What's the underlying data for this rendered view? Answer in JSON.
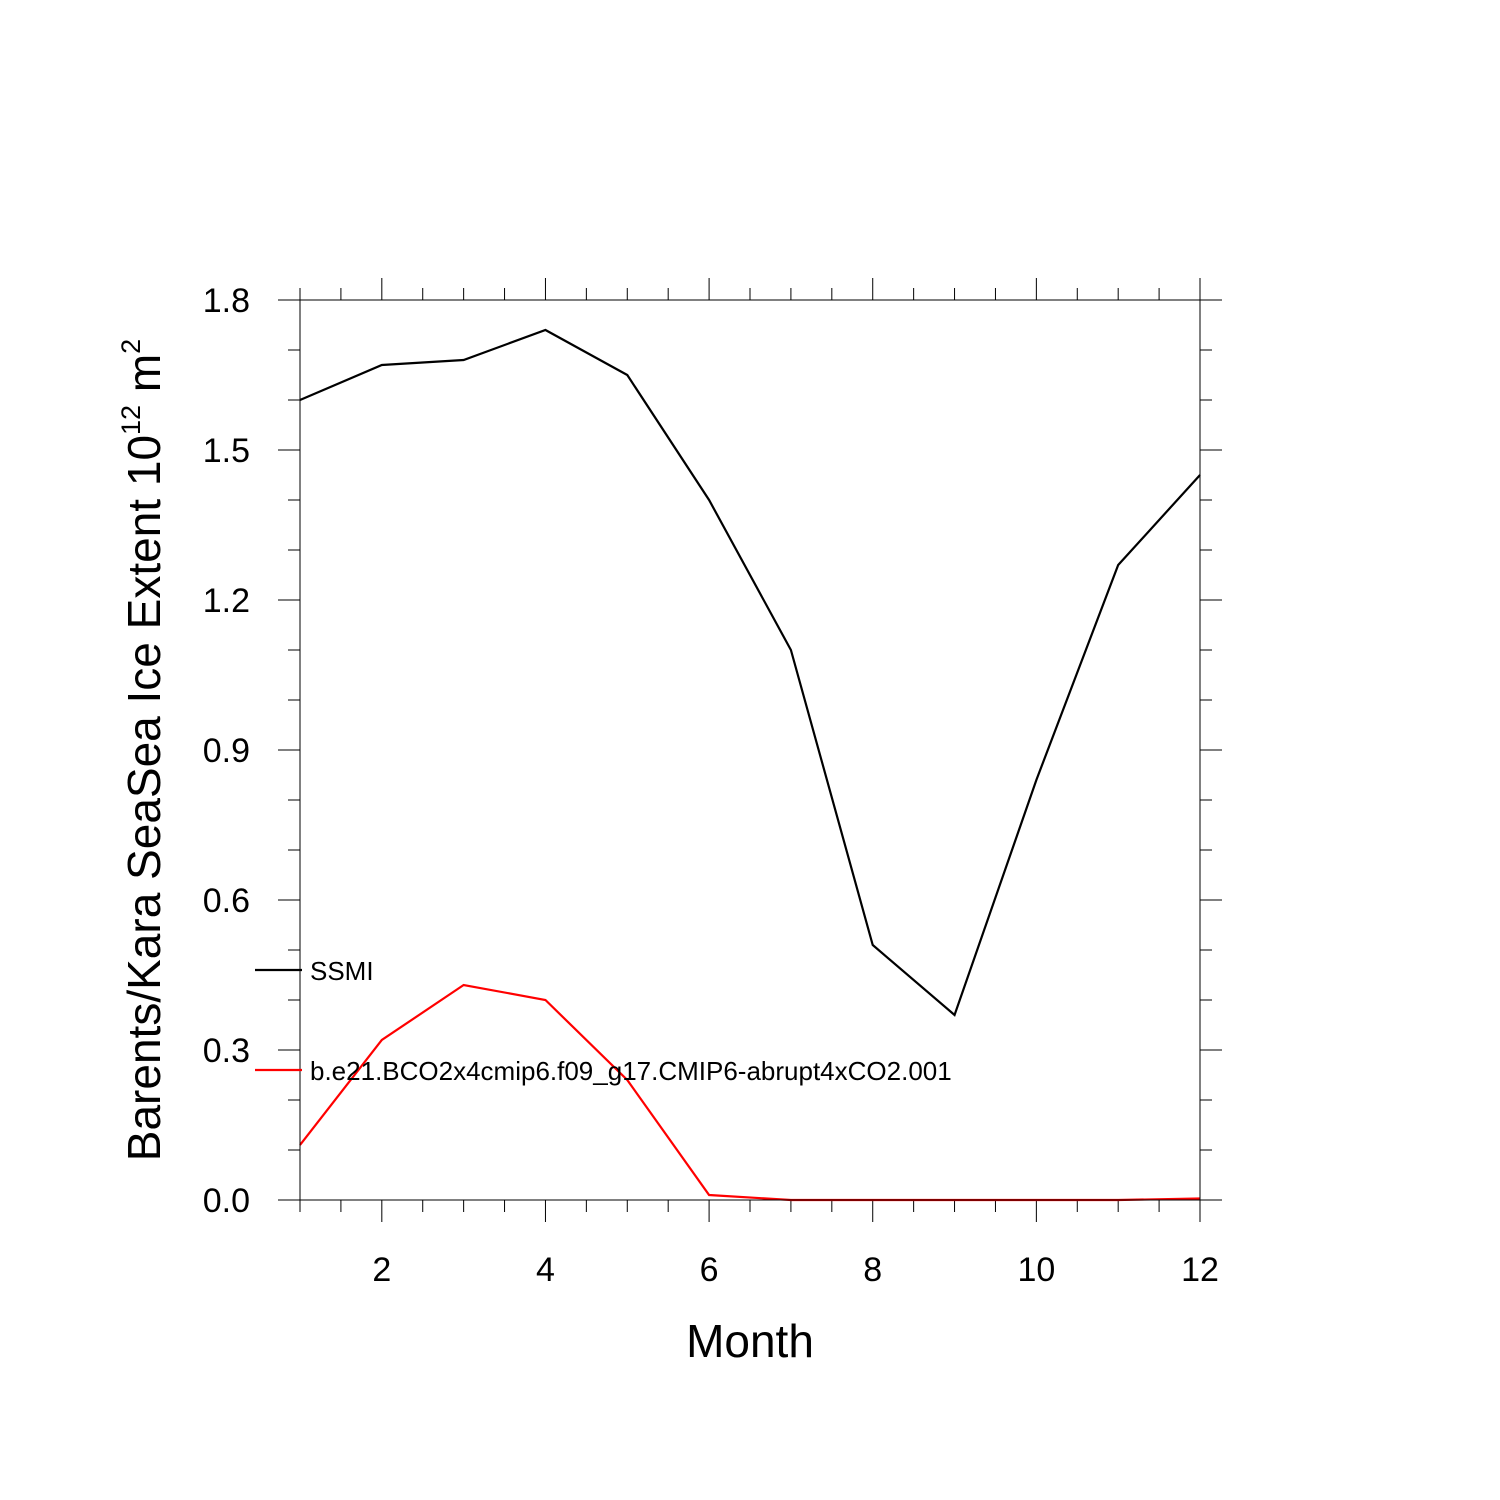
{
  "chart_data": {
    "type": "line",
    "x": [
      1,
      2,
      3,
      4,
      5,
      6,
      7,
      8,
      9,
      10,
      11,
      12
    ],
    "series": [
      {
        "name": "SSMI",
        "color": "#000000",
        "values": [
          1.6,
          1.67,
          1.68,
          1.74,
          1.65,
          1.4,
          1.1,
          0.51,
          0.37,
          0.84,
          1.27,
          1.45
        ]
      },
      {
        "name": "b.e21.BCO2x4cmip6.f09_g17.CMIP6-abrupt4xCO2.001",
        "color": "#ff0000",
        "values": [
          0.11,
          0.32,
          0.43,
          0.4,
          0.24,
          0.01,
          0.0,
          0.0,
          0.0,
          0.0,
          0.0,
          0.003
        ]
      }
    ],
    "xlabel": "Month",
    "ylabel": {
      "main": "Barents/Kara SeaSea Ice Extent 10",
      "exp": "12",
      "unit": " m",
      "unit_exp": "2"
    },
    "xlim": [
      1,
      12
    ],
    "ylim": [
      0.0,
      1.8
    ],
    "x_ticks": [
      2,
      4,
      6,
      8,
      10,
      12
    ],
    "x_tick_labels": [
      "2",
      "4",
      "6",
      "8",
      "10",
      "12"
    ],
    "y_ticks": [
      0.0,
      0.3,
      0.6,
      0.9,
      1.2,
      1.5,
      1.8
    ],
    "y_tick_labels": [
      "0.0",
      "0.3",
      "0.6",
      "0.9",
      "1.2",
      "1.5",
      "1.8"
    ],
    "grid": false,
    "legend_placement": "lower-left"
  }
}
